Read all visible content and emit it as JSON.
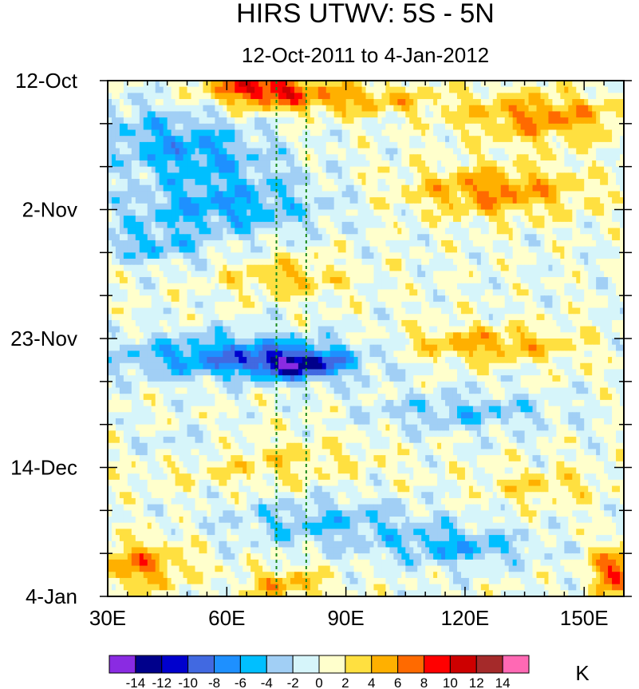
{
  "chart_data": {
    "type": "heatmap",
    "title": "HIRS UTWV: 5S - 5N",
    "subtitle": "12-Oct-2011 to 4-Jan-2012",
    "x_axis": {
      "range": [
        30,
        160
      ],
      "tick_values": [
        30,
        60,
        90,
        120,
        150
      ],
      "tick_labels": [
        "30E",
        "60E",
        "90E",
        "120E",
        "150E"
      ]
    },
    "y_axis": {
      "range_days": [
        0,
        84
      ],
      "reversed": true,
      "tick_values": [
        0,
        21,
        42,
        63,
        84
      ],
      "tick_labels": [
        "12-Oct",
        "2-Nov",
        "23-Nov",
        "14-Dec",
        "4-Jan"
      ]
    },
    "reference_lines_lon": [
      72.5,
      80
    ],
    "colorbar": {
      "unit": "K",
      "levels": [
        -14,
        -12,
        -10,
        -8,
        -6,
        -4,
        -2,
        0,
        2,
        4,
        6,
        8,
        10,
        12,
        14
      ],
      "colors": [
        "#8a2be2",
        "#00008b",
        "#0000cd",
        "#4169e1",
        "#1e90ff",
        "#00bfff",
        "#a1cff5",
        "#d6f5fa",
        "#ffffcc",
        "#ffe040",
        "#ffb000",
        "#ff6a00",
        "#ff0000",
        "#cd0000",
        "#a52a2a",
        "#ff69b4"
      ]
    },
    "features": [
      {
        "lon": [
          32,
          75
        ],
        "day": [
          4,
          20
        ],
        "value": -8
      },
      {
        "lon": [
          32,
          90
        ],
        "day": [
          40,
          50
        ],
        "value": -10
      },
      {
        "lon": [
          60,
          72
        ],
        "day": [
          0,
          3
        ],
        "value": 10
      },
      {
        "lon": [
          110,
          150
        ],
        "day": [
          14,
          22
        ],
        "value": 6
      },
      {
        "lon": [
          60,
          90
        ],
        "day": [
          30,
          37
        ],
        "value": 6
      },
      {
        "lon": [
          30,
          80
        ],
        "day": [
          78,
          84
        ],
        "value": 8
      },
      {
        "lon": [
          150,
          160
        ],
        "day": [
          76,
          84
        ],
        "value": 12
      }
    ]
  }
}
